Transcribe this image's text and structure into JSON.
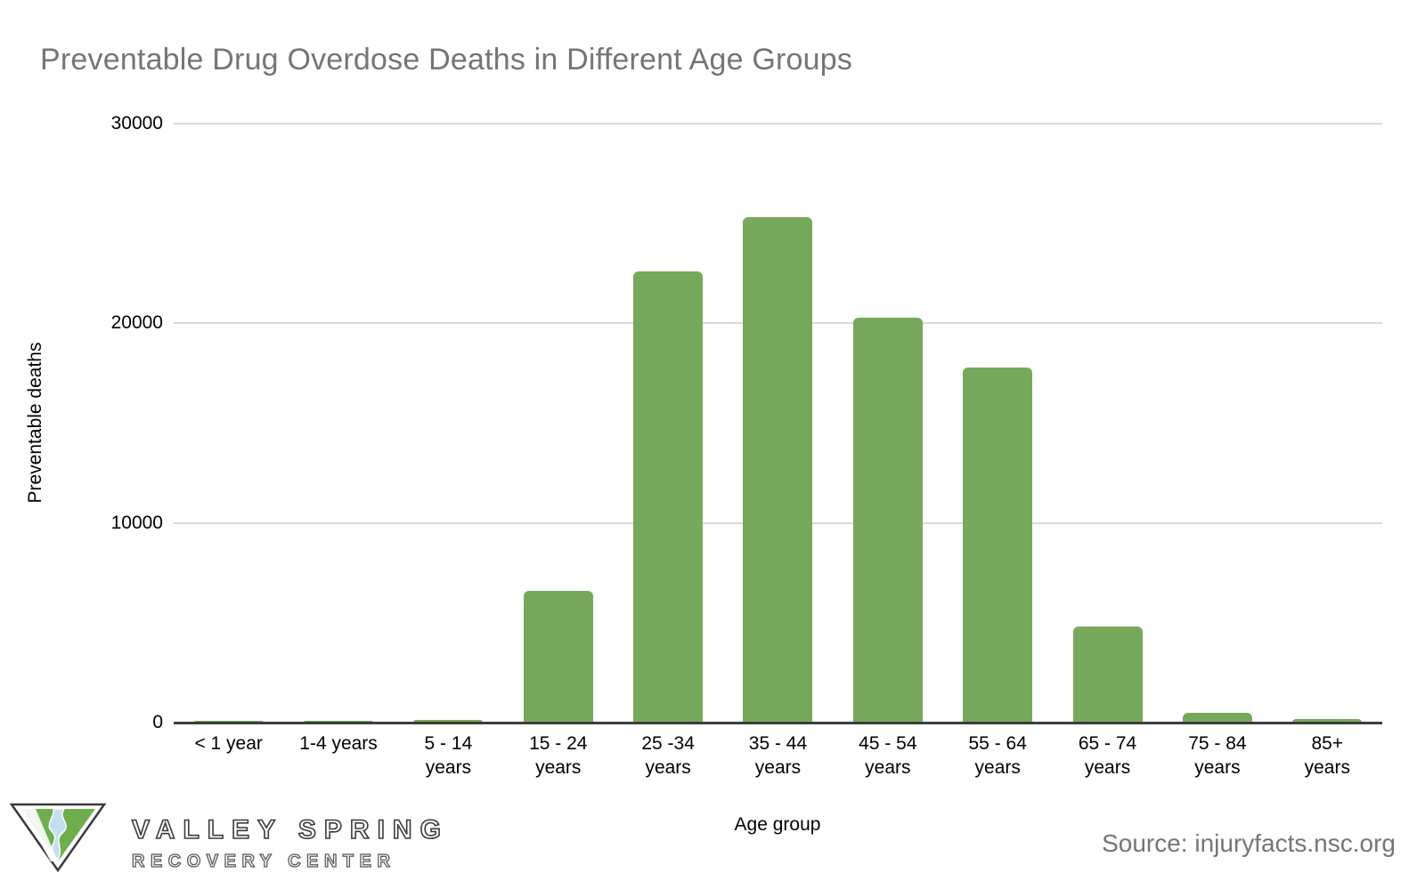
{
  "title": "Preventable Drug Overdose Deaths in Different Age Groups",
  "chart_data": {
    "type": "bar",
    "title": "Preventable Drug Overdose Deaths in Different Age Groups",
    "categories": [
      "< 1 year",
      "1-4 years",
      "5 - 14\nyears",
      "15 - 24\nyears",
      "25 -34\nyears",
      "35 - 44\nyears",
      "45 - 54\nyears",
      "55 - 64\nyears",
      "65 - 74\nyears",
      "75 - 84\nyears",
      "85+\nyears"
    ],
    "values": [
      100,
      100,
      150,
      6600,
      22600,
      25300,
      20300,
      17800,
      4800,
      500,
      200
    ],
    "xlabel": "Age group",
    "ylabel": "Preventable deaths",
    "ylim": [
      0,
      30000
    ],
    "yticks": [
      0,
      10000,
      20000,
      30000
    ],
    "grid": true,
    "legend": "none",
    "bar_color": "#77a95c",
    "gridline_color": "#dadada",
    "axis_line_color": "#3d3d3d"
  },
  "source": {
    "label": "Source: injuryfacts.nsc.org"
  },
  "logo": {
    "line1": "VALLEY SPRING",
    "line2": "RECOVERY CENTER",
    "triangle_green": "#6fae4e",
    "river_blue": "#c3e0ee"
  },
  "colors": {
    "title_gray": "#757575",
    "source_gray": "#757575",
    "text_black": "#000000",
    "background": "#ffffff"
  }
}
